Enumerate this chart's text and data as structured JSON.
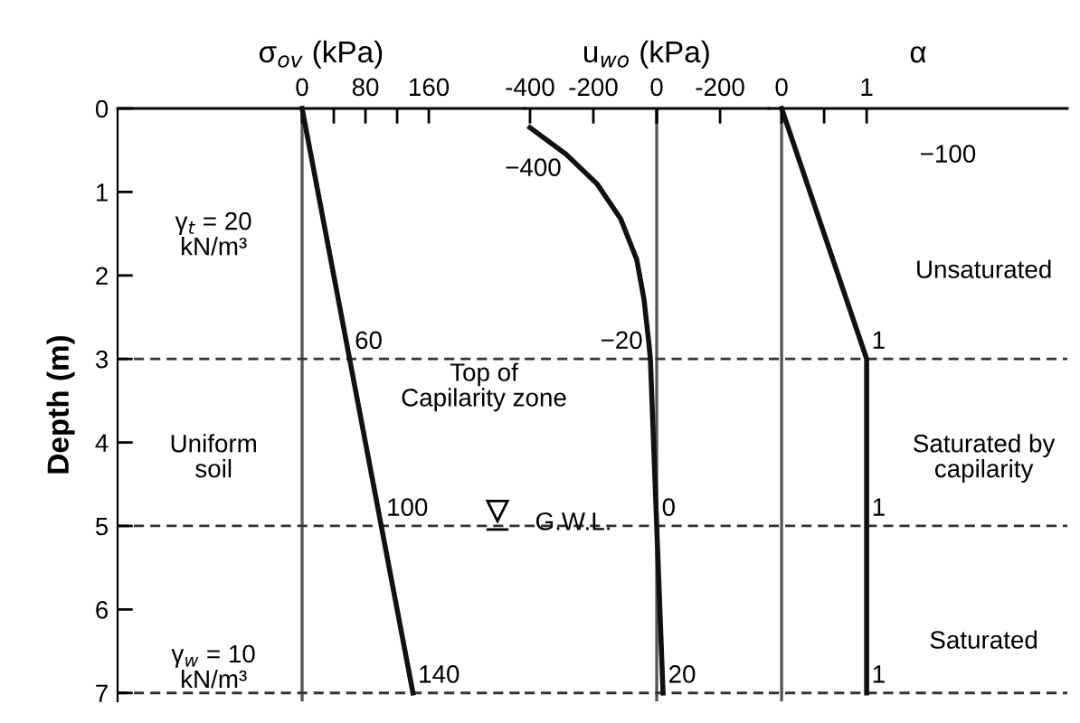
{
  "chart_data": [
    {
      "type": "line",
      "xlabel": "σ$_{ov}$ (kPa)",
      "ylabel": "Depth (m)",
      "xlim": [
        -233,
        281
      ],
      "ylim": [
        7.1,
        0
      ],
      "xticks": [
        0,
        {
          "value": 40,
          "label": null
        },
        80,
        {
          "value": 120,
          "label": null
        },
        160
      ],
      "yticks": [
        0,
        1,
        2,
        3,
        4,
        5,
        6,
        7
      ],
      "series": [
        {
          "color": "#111111",
          "x": [
            0,
            60,
            100,
            140
          ],
          "values": [
            0,
            3,
            5,
            7
          ]
        }
      ],
      "ref_lines": [
        {
          "axis": "x",
          "value": 0,
          "color": "#555555",
          "line_style": "solid"
        },
        {
          "axis": "y",
          "value": 3,
          "color": "#333333",
          "line_style": "dashed"
        },
        {
          "axis": "y",
          "value": 5,
          "color": "#333333",
          "line_style": "dashed"
        },
        {
          "axis": "y",
          "value": 7,
          "color": "#333333",
          "line_style": "dashed"
        }
      ],
      "annotations": [
        "γ$_{t}$ = 20\nkN/m³",
        "Uniform\nsoil",
        "γ$_{w}$ = 10\nkN/m³",
        "Top of\nCapilarity zone",
        {
          "text": "60",
          "x": 60,
          "y": 3
        },
        {
          "text": "100",
          "x": 100,
          "y": 5
        },
        {
          "text": "140",
          "x": 140,
          "y": 7
        }
      ]
    },
    {
      "type": "line",
      "xlabel": "u$_{wo}$ (kPa)",
      "xlim": [
        -417,
        354
      ],
      "ylim": [
        7.1,
        0
      ],
      "tick_labels": "x",
      "xticks": [
        -400,
        -200,
        {
          "value": 0,
          "label": null
        }
      ],
      "x2lim": [
        417,
        -354
      ],
      "x2ticks": [
        0,
        -200
      ],
      "yticks": [
        0,
        1,
        2,
        3,
        4,
        5,
        6,
        7
      ],
      "series": [
        {
          "color": "#111111",
          "x": [
            -400,
            -286,
            -189,
            -114,
            -63,
            -40,
            -25,
            -20,
            0,
            20
          ],
          "values": [
            0.23,
            0.55,
            0.9,
            1.32,
            1.81,
            2.29,
            2.8,
            3,
            5,
            7
          ]
        }
      ],
      "ref_lines": [
        {
          "axis": "x",
          "value": 0,
          "color": "#555555",
          "line_style": "solid"
        },
        {
          "axis": "y",
          "value": 3,
          "color": "#333333",
          "line_style": "dashed"
        },
        {
          "axis": "y",
          "value": 5,
          "color": "#333333",
          "line_style": "dashed"
        },
        {
          "axis": "y",
          "value": 7,
          "color": "#333333",
          "line_style": "dashed"
        }
      ],
      "annotations": [
        "G.W.L.",
        {
          "text": "−400",
          "x": -400,
          "y": 0.23
        },
        {
          "text": "−20",
          "x": -20,
          "y": 3
        },
        {
          "text": "0",
          "x": 0,
          "y": 5
        },
        {
          "text": "20",
          "x": 20,
          "y": 7
        }
      ]
    },
    {
      "type": "line",
      "xlabel": "α",
      "xlim": [
        -0.15,
        3.36
      ],
      "ylim": [
        7.1,
        0
      ],
      "tick_labels": "x",
      "xticks": [
        0,
        {
          "value": 0.5,
          "label": null
        },
        1
      ],
      "yticks": [
        0,
        1,
        2,
        3,
        4,
        5,
        6,
        7
      ],
      "series": [
        {
          "color": "#111111",
          "x": [
            0,
            1,
            1,
            1
          ],
          "values": [
            0,
            3,
            5,
            7
          ]
        }
      ],
      "ref_lines": [
        {
          "axis": "x",
          "value": 0,
          "color": "#555555",
          "line_style": "solid"
        },
        {
          "axis": "y",
          "value": 3,
          "color": "#333333",
          "line_style": "dashed"
        },
        {
          "axis": "y",
          "value": 5,
          "color": "#333333",
          "line_style": "dashed"
        },
        {
          "axis": "y",
          "value": 7,
          "color": "#333333",
          "line_style": "dashed"
        }
      ],
      "annotations": [
        "−100",
        "Unsaturated",
        "Saturated by\ncapilarity",
        "Saturated",
        {
          "text": "1",
          "x": 1,
          "y": 3
        },
        {
          "text": "1",
          "x": 1,
          "y": 5
        },
        {
          "text": "1",
          "x": 1,
          "y": 7
        }
      ]
    }
  ]
}
